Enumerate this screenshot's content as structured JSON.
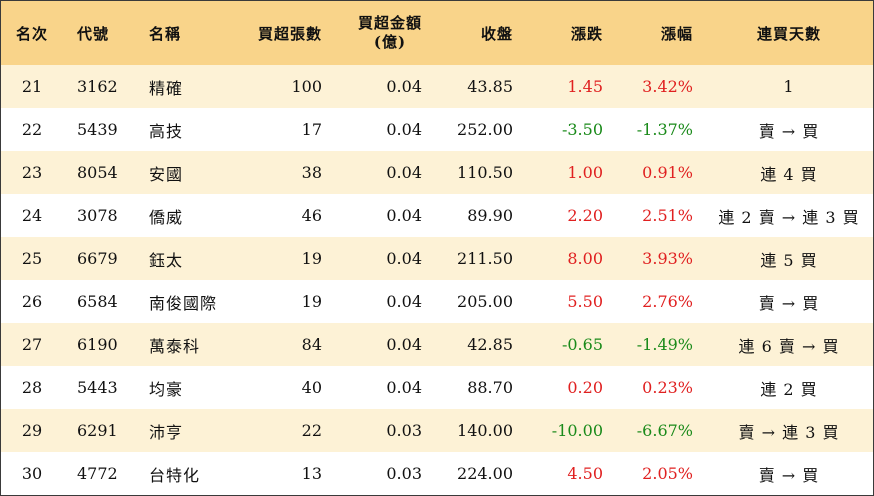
{
  "colors": {
    "header_bg": "#f9d48a",
    "row_alt_bg": "#fdf2d6",
    "up": "#e02020",
    "down": "#1a8a1a"
  },
  "headers": {
    "rank": "名次",
    "code": "代號",
    "name": "名稱",
    "net_buy_lots": "買超張數",
    "net_buy_amount_line1": "買超金額",
    "net_buy_amount_line2": "(億)",
    "close": "收盤",
    "change": "漲跌",
    "change_pct": "漲幅",
    "streak": "連買天數"
  },
  "rows": [
    {
      "rank": "21",
      "code": "3162",
      "name": "精確",
      "lots": "100",
      "amount": "0.04",
      "close": "43.85",
      "change": "1.45",
      "pct": "3.42%",
      "dir": "up",
      "streak": "1"
    },
    {
      "rank": "22",
      "code": "5439",
      "name": "高技",
      "lots": "17",
      "amount": "0.04",
      "close": "252.00",
      "change": "-3.50",
      "pct": "-1.37%",
      "dir": "down",
      "streak": "賣 → 買"
    },
    {
      "rank": "23",
      "code": "8054",
      "name": "安國",
      "lots": "38",
      "amount": "0.04",
      "close": "110.50",
      "change": "1.00",
      "pct": "0.91%",
      "dir": "up",
      "streak": "連 4 買"
    },
    {
      "rank": "24",
      "code": "3078",
      "name": "僑威",
      "lots": "46",
      "amount": "0.04",
      "close": "89.90",
      "change": "2.20",
      "pct": "2.51%",
      "dir": "up",
      "streak": "連 2 賣 → 連 3 買"
    },
    {
      "rank": "25",
      "code": "6679",
      "name": "鈺太",
      "lots": "19",
      "amount": "0.04",
      "close": "211.50",
      "change": "8.00",
      "pct": "3.93%",
      "dir": "up",
      "streak": "連 5 買"
    },
    {
      "rank": "26",
      "code": "6584",
      "name": "南俊國際",
      "lots": "19",
      "amount": "0.04",
      "close": "205.00",
      "change": "5.50",
      "pct": "2.76%",
      "dir": "up",
      "streak": "賣 → 買"
    },
    {
      "rank": "27",
      "code": "6190",
      "name": "萬泰科",
      "lots": "84",
      "amount": "0.04",
      "close": "42.85",
      "change": "-0.65",
      "pct": "-1.49%",
      "dir": "down",
      "streak": "連 6 賣 → 買"
    },
    {
      "rank": "28",
      "code": "5443",
      "name": "均豪",
      "lots": "40",
      "amount": "0.04",
      "close": "88.70",
      "change": "0.20",
      "pct": "0.23%",
      "dir": "up",
      "streak": "連 2 買"
    },
    {
      "rank": "29",
      "code": "6291",
      "name": "沛亨",
      "lots": "22",
      "amount": "0.03",
      "close": "140.00",
      "change": "-10.00",
      "pct": "-6.67%",
      "dir": "down",
      "streak": "賣 → 連 3 買"
    },
    {
      "rank": "30",
      "code": "4772",
      "name": "台特化",
      "lots": "13",
      "amount": "0.03",
      "close": "224.00",
      "change": "4.50",
      "pct": "2.05%",
      "dir": "up",
      "streak": "賣 → 買"
    }
  ]
}
